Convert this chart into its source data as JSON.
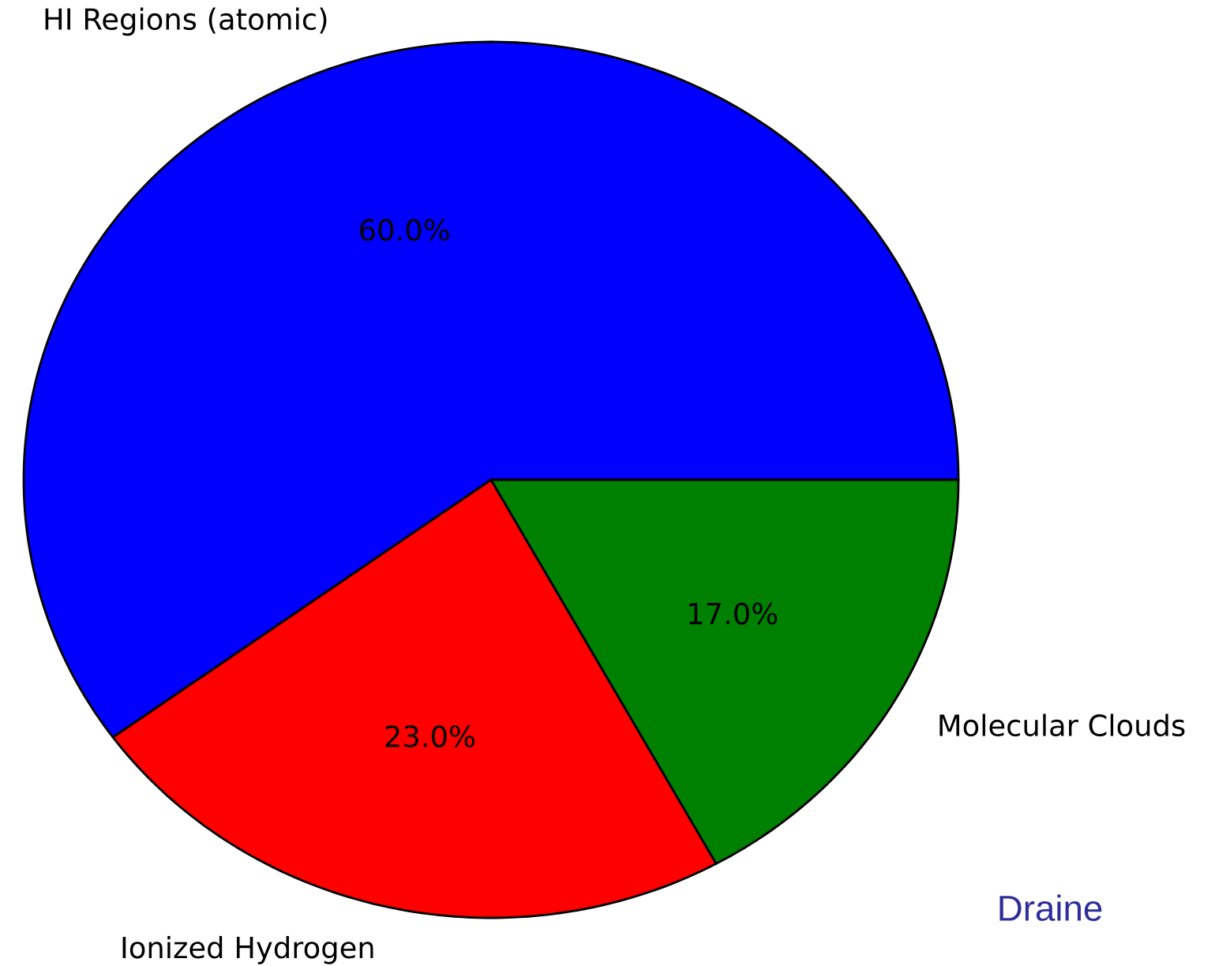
{
  "chart_data": {
    "type": "pie",
    "categories": [
      "HI Regions (atomic)",
      "Ionized Hydrogen",
      "Molecular Clouds"
    ],
    "values": [
      60,
      23,
      17
    ],
    "colors": [
      "#0000ff",
      "#ff0000",
      "#008000"
    ],
    "value_labels": [
      "60.0%",
      "23.0%",
      "17.0%"
    ],
    "annotations": [
      "Draine"
    ]
  }
}
